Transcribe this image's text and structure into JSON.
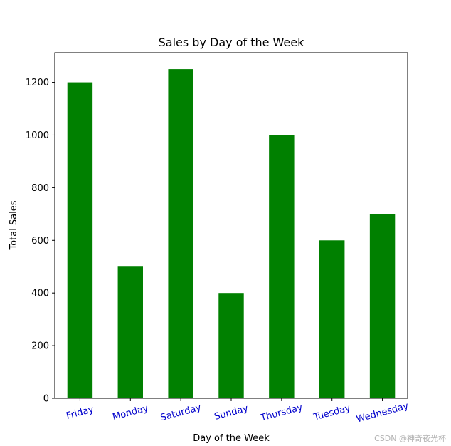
{
  "chart_data": {
    "type": "bar",
    "title": "Sales by Day of the Week",
    "xlabel": "Day of the Week",
    "ylabel": "Total Sales",
    "categories": [
      "Friday",
      "Monday",
      "Saturday",
      "Sunday",
      "Thursday",
      "Tuesday",
      "Wednesday"
    ],
    "values": [
      1200,
      500,
      1250,
      400,
      1000,
      600,
      700
    ],
    "ylim": [
      0,
      1312.5
    ],
    "yticks": [
      0,
      200,
      400,
      600,
      800,
      1000,
      1200
    ],
    "bar_color": "#008000",
    "xtick_color": "#0000cc",
    "xtick_rotation_deg": -15,
    "grid": false,
    "legend": "none"
  },
  "watermark": "CSDN @神奇夜光杯"
}
